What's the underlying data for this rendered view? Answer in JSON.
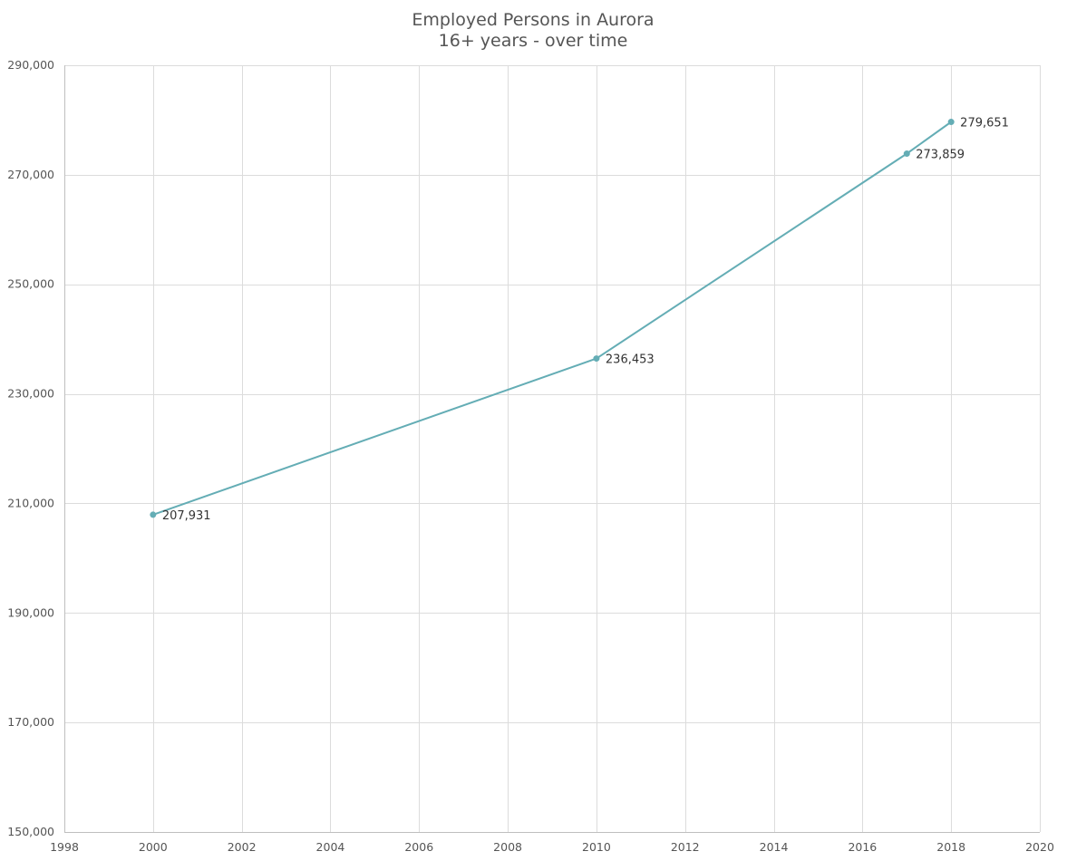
{
  "chart_data": {
    "type": "line",
    "title": "Employed Persons in Aurora",
    "subtitle": "16+ years - over time",
    "xlabel": "",
    "ylabel": "",
    "xlim": [
      1998,
      2020
    ],
    "ylim": [
      150000,
      290000
    ],
    "x_ticks": [
      1998,
      2000,
      2002,
      2004,
      2006,
      2008,
      2010,
      2012,
      2014,
      2016,
      2018,
      2020
    ],
    "x_tick_labels": [
      "1998",
      "2000",
      "2002",
      "2004",
      "2006",
      "2008",
      "2010",
      "2012",
      "2014",
      "2016",
      "2018",
      "2020"
    ],
    "y_ticks": [
      150000,
      170000,
      190000,
      210000,
      230000,
      250000,
      270000,
      290000
    ],
    "y_tick_labels": [
      "150,000",
      "170,000",
      "190,000",
      "210,000",
      "230,000",
      "250,000",
      "270,000",
      "290,000"
    ],
    "grid": true,
    "legend": "none",
    "series": [
      {
        "color": "#64adb5",
        "points": [
          {
            "x": 2000,
            "y": 207931,
            "label": "207,931"
          },
          {
            "x": 2010,
            "y": 236453,
            "label": "236,453"
          },
          {
            "x": 2017,
            "y": 273859,
            "label": "273,859"
          },
          {
            "x": 2018,
            "y": 279651,
            "label": "279,651"
          }
        ]
      }
    ]
  }
}
